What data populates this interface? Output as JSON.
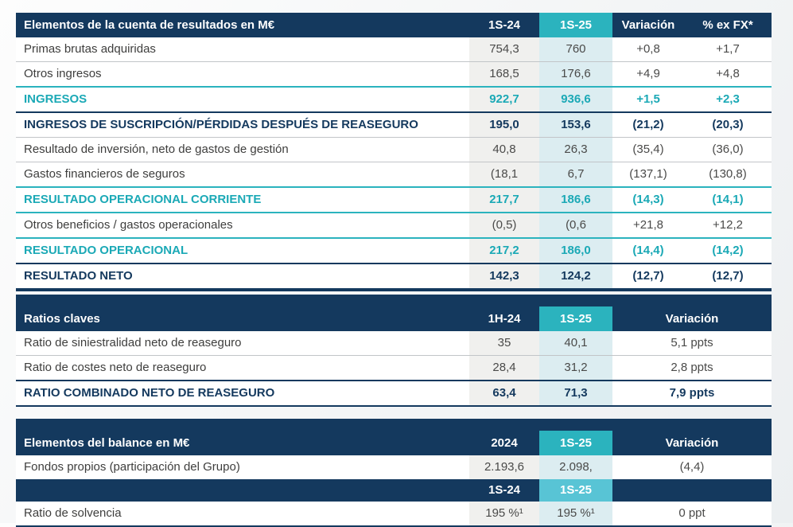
{
  "colors": {
    "navy": "#14395e",
    "teal_header": "#2bb3be",
    "teal_text": "#1ba9b6",
    "subheader_teal": "#58c4d5",
    "col_gray_bg": "#f0f0ee",
    "col_teal_bg": "#dcedf1"
  },
  "table1": {
    "title": "Elementos de la cuenta de resultados en M€",
    "columns": [
      "1S-24",
      "1S-25",
      "Variación",
      "% ex FX*"
    ],
    "rows": [
      {
        "label": "Primas brutas adquiridas",
        "style": "normal",
        "values": [
          "754,3",
          "760",
          "+0,8",
          "+1,7"
        ]
      },
      {
        "label": "Otros ingresos",
        "style": "normal",
        "values": [
          "168,5",
          "176,6",
          "+4,9",
          "+4,8"
        ]
      },
      {
        "label": "INGRESOS",
        "style": "teal",
        "values": [
          "922,7",
          "936,6",
          "+1,5",
          "+2,3"
        ]
      },
      {
        "label": "INGRESOS DE SUSCRIPCIÓN/PÉRDIDAS DESPUÉS DE REASEGURO",
        "style": "navy",
        "values": [
          "195,0",
          "153,6",
          "(21,2)",
          "(20,3)"
        ]
      },
      {
        "label": "Resultado de inversión, neto de gastos de gestión",
        "style": "normal",
        "values": [
          "40,8",
          "26,3",
          "(35,4)",
          "(36,0)"
        ]
      },
      {
        "label": "Gastos financieros de seguros",
        "style": "normal",
        "values": [
          "(18,1",
          "6,7",
          "(137,1)",
          "(130,8)"
        ]
      },
      {
        "label": "RESULTADO OPERACIONAL CORRIENTE",
        "style": "teal",
        "values": [
          "217,7",
          "186,6",
          "(14,3)",
          "(14,1)"
        ]
      },
      {
        "label": "Otros beneficios / gastos operacionales",
        "style": "normal",
        "values": [
          "(0,5)",
          "(0,6",
          "+21,8",
          "+12,2"
        ]
      },
      {
        "label": "RESULTADO OPERACIONAL",
        "style": "teal",
        "values": [
          "217,2",
          "186,0",
          "(14,4)",
          "(14,2)"
        ]
      },
      {
        "label": "RESULTADO NETO",
        "style": "navy",
        "values": [
          "142,3",
          "124,2",
          "(12,7)",
          "(12,7)"
        ]
      }
    ]
  },
  "table2": {
    "title": "Ratios claves",
    "columns": [
      "1H-24",
      "1S-25",
      "Variación"
    ],
    "rows": [
      {
        "label": "Ratio de siniestralidad neto de reaseguro",
        "style": "normal",
        "values": [
          "35",
          "40,1",
          "5,1 ppts"
        ]
      },
      {
        "label": "Ratio de costes neto de reaseguro",
        "style": "normal",
        "values": [
          "28,4",
          "31,2",
          "2,8 ppts"
        ]
      },
      {
        "label": "RATIO COMBINADO NETO DE REASEGURO",
        "style": "navy",
        "values": [
          "63,4",
          "71,3",
          "7,9 ppts"
        ]
      }
    ]
  },
  "table3": {
    "title": "Elementos del balance en M€",
    "columns": [
      "2024",
      "1S-25",
      "Variación"
    ],
    "rows": [
      {
        "label": "Fondos propios (participación del Grupo)",
        "style": "normal",
        "values": [
          "2.193,6",
          "2.098,",
          "(4,4)"
        ]
      }
    ],
    "subheader": [
      "1S-24",
      "1S-25"
    ],
    "rows2": [
      {
        "label": "Ratio de solvencia",
        "style": "normal",
        "values": [
          "195 %¹",
          "195 %¹",
          "0 ppt"
        ]
      }
    ]
  }
}
